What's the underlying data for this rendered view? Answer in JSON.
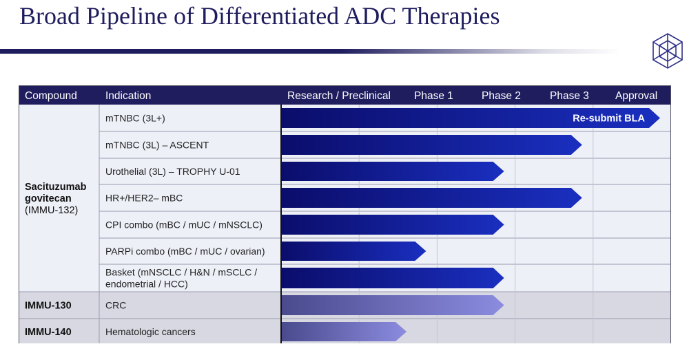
{
  "page": {
    "title": "Broad Pipeline of Differentiated ADC Therapies"
  },
  "logo": {
    "icon": "hexagon-lattice-logo-icon",
    "color": "#2e3088"
  },
  "colors": {
    "header_bg": "#1f1d5e",
    "bar_dark_start": "#0b0d6b",
    "bar_dark_end": "#1a2fc0",
    "bar_light_start": "#4a4a8e",
    "bar_light_end": "#8c8ce0",
    "row_bg_light": "#eef0f8",
    "row_bg_gray": "#d8d8e2"
  },
  "chart_data": {
    "type": "table",
    "columns": [
      "Compound",
      "Indication",
      "Research / Preclinical",
      "Phase 1",
      "Phase 2",
      "Phase 3",
      "Approval"
    ],
    "phases": [
      "Research / Preclinical",
      "Phase 1",
      "Phase 2",
      "Phase 3",
      "Approval"
    ],
    "groups": [
      {
        "compound_lines": [
          "Sacituzumab",
          "govitecan"
        ],
        "compound_sub": "(IMMU-132)",
        "rows": [
          {
            "indication_lines": [
              "mTNBC (3L+)"
            ],
            "progress": 5.0,
            "label": "Re-submit BLA",
            "style": "dark"
          },
          {
            "indication_lines": [
              "mTNBC (3L) – ASCENT"
            ],
            "progress": 4.0,
            "label": "",
            "style": "dark"
          },
          {
            "indication_lines": [
              "Urothelial (3L) – TROPHY U-01"
            ],
            "progress": 3.0,
            "label": "",
            "style": "dark"
          },
          {
            "indication_lines": [
              "HR+/HER2– mBC"
            ],
            "progress": 4.0,
            "label": "",
            "style": "dark"
          },
          {
            "indication_lines": [
              "CPI combo (mBC / mUC / mNSCLC)"
            ],
            "progress": 3.0,
            "label": "",
            "style": "dark"
          },
          {
            "indication_lines": [
              "PARPi combo (mBC / mUC / ovarian)"
            ],
            "progress": 2.0,
            "label": "",
            "style": "dark"
          },
          {
            "indication_lines": [
              "Basket (mNSCLC / H&N / mSCLC /",
              "endometrial / HCC)"
            ],
            "progress": 3.0,
            "label": "",
            "style": "dark"
          }
        ]
      },
      {
        "compound_lines": [
          "IMMU-130"
        ],
        "compound_sub": "",
        "rows": [
          {
            "indication_lines": [
              "CRC"
            ],
            "progress": 3.0,
            "label": "",
            "style": "light"
          }
        ]
      },
      {
        "compound_lines": [
          "IMMU-140"
        ],
        "compound_sub": "",
        "rows": [
          {
            "indication_lines": [
              "Hematologic cancers"
            ],
            "progress": 1.75,
            "label": "",
            "style": "light"
          }
        ]
      }
    ]
  }
}
